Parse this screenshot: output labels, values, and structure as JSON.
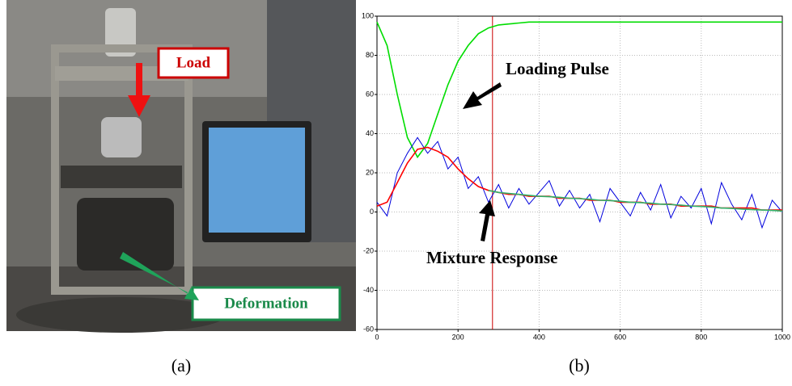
{
  "photo": {
    "load_label": "Load",
    "deformation_label": "Deformation",
    "caption": "(a)"
  },
  "chart_data": {
    "type": "line",
    "caption": "(b)",
    "annotations": [
      "Loading Pulse",
      "Mixture Response"
    ],
    "x": [
      0,
      25,
      50,
      75,
      100,
      125,
      150,
      175,
      200,
      225,
      250,
      275,
      300,
      325,
      350,
      375,
      400,
      425,
      450,
      475,
      500,
      525,
      550,
      575,
      600,
      625,
      650,
      675,
      700,
      725,
      750,
      775,
      800,
      825,
      850,
      875,
      900,
      925,
      950,
      975,
      1000
    ],
    "series": [
      {
        "color": "#00dd00",
        "values": [
          97,
          85,
          60,
          38,
          28,
          35,
          50,
          65,
          77,
          85,
          91,
          94,
          95.5,
          96,
          96.5,
          97,
          97,
          97,
          97,
          97,
          97,
          97,
          97,
          97,
          97,
          97,
          97,
          97,
          97,
          97,
          97,
          97,
          97,
          97,
          97,
          97,
          97,
          97,
          97,
          97,
          97
        ]
      },
      {
        "color": "#0000dd",
        "values": [
          5,
          -2,
          20,
          30,
          38,
          30,
          36,
          22,
          28,
          12,
          18,
          5,
          14,
          2,
          12,
          4,
          10,
          16,
          3,
          11,
          2,
          9,
          -5,
          12,
          5,
          -2,
          10,
          1,
          14,
          -3,
          8,
          2,
          12,
          -6,
          15,
          4,
          -4,
          9,
          -8,
          6,
          0
        ]
      },
      {
        "color": "#ff0000",
        "values": [
          3,
          5,
          15,
          25,
          32,
          33,
          31,
          28,
          22,
          17,
          13,
          11,
          10,
          9,
          9,
          8,
          8,
          8,
          7,
          7,
          7,
          6,
          6,
          6,
          5,
          5,
          5,
          4,
          4,
          4,
          3,
          3,
          3,
          3,
          2,
          2,
          2,
          2,
          1,
          1,
          1
        ]
      },
      {
        "color": "#2fb36b",
        "values": [
          null,
          null,
          null,
          null,
          null,
          null,
          null,
          null,
          null,
          null,
          null,
          11,
          10,
          9.5,
          9,
          8.5,
          8,
          7.8,
          7.5,
          7,
          6.8,
          6.5,
          6,
          5.8,
          5.5,
          5,
          4.8,
          4.5,
          4,
          3.8,
          3.5,
          3,
          2.8,
          2.5,
          2,
          1.8,
          1.5,
          1.2,
          1,
          0.8,
          0.5
        ]
      }
    ],
    "vline": {
      "x": 285,
      "color": "#cc0000"
    },
    "xlim": [
      0,
      1000
    ],
    "xticks": [
      0,
      200,
      400,
      600,
      800,
      1000
    ],
    "ylim": [
      -60,
      100
    ],
    "yticks": [
      -60,
      -40,
      -20,
      0,
      20,
      40,
      60,
      80,
      100
    ],
    "grid": true
  }
}
